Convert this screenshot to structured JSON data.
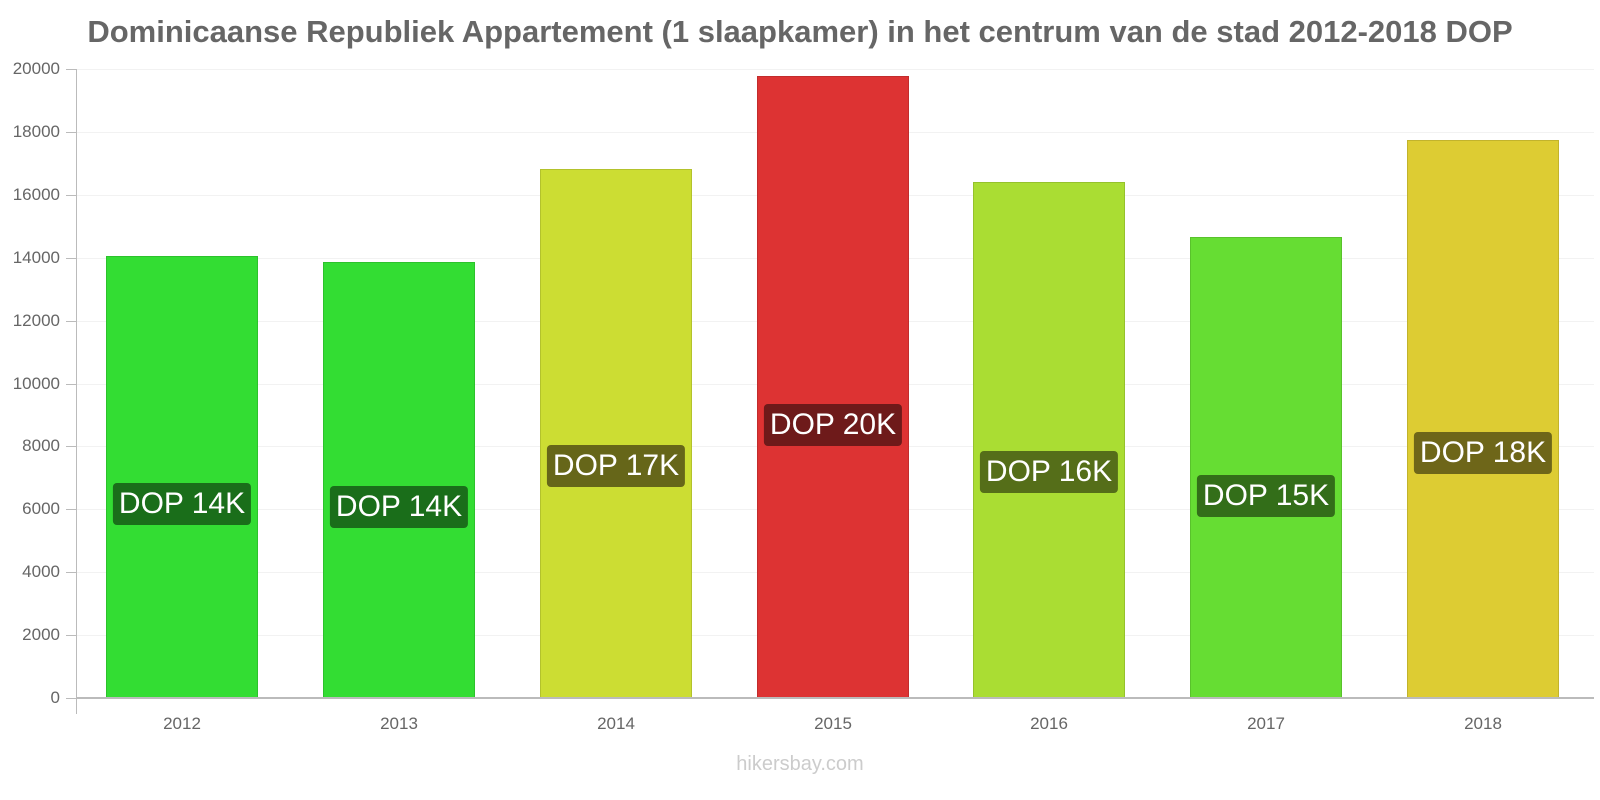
{
  "chart_data": {
    "type": "bar",
    "title": "Dominicaanse Republiek Appartement (1 slaapkamer) in het centrum van de stad 2012-2018 DOP",
    "xlabel": "",
    "ylabel": "",
    "ylim": [
      0,
      20000
    ],
    "yticks": [
      0,
      2000,
      4000,
      6000,
      8000,
      10000,
      12000,
      14000,
      16000,
      18000,
      20000
    ],
    "grid": true,
    "legend": "none",
    "categories": [
      "2012",
      "2013",
      "2014",
      "2015",
      "2016",
      "2017",
      "2018"
    ],
    "values": [
      14050,
      13860,
      16820,
      19780,
      16410,
      14660,
      17740
    ],
    "data_labels": [
      "DOP 14K",
      "DOP 14K",
      "DOP 17K",
      "DOP 20K",
      "DOP 16K",
      "DOP 15K",
      "DOP 18K"
    ],
    "bar_colors": [
      "#33dd33",
      "#33dd33",
      "#ccdd33",
      "#dd3333",
      "#aadd33",
      "#66dd33",
      "#ddcc33"
    ],
    "label_bg_colors": [
      "#1a6e1a",
      "#1a6e1a",
      "#666619",
      "#6e1a1a",
      "#556e19",
      "#336e19",
      "#6e6619"
    ]
  },
  "footer": "hikersbay.com"
}
